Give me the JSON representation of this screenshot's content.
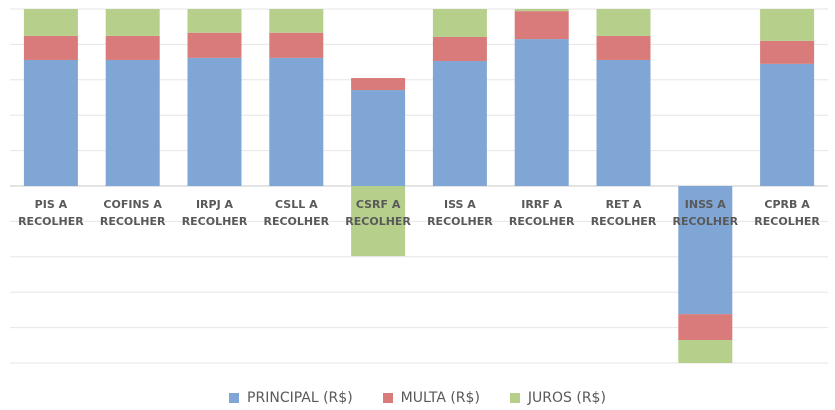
{
  "chart_data": {
    "type": "stacked_bar",
    "categories": [
      "PIS A RECOLHER",
      "COFINS A RECOLHER",
      "IRPJ A RECOLHER",
      "CSLL A RECOLHER",
      "CSRF A RECOLHER",
      "ISS A RECOLHER",
      "IRRF A RECOLHER",
      "RET A RECOLHER",
      "INSS A RECOLHER",
      "CPRB A RECOLHER"
    ],
    "series": [
      {
        "name": "PRINCIPAL (R$)",
        "color": "#7fa6d4",
        "values": [
          3.56,
          3.56,
          3.62,
          3.62,
          2.71,
          3.53,
          4.15,
          3.56,
          -3.62,
          3.45
        ]
      },
      {
        "name": "MULTA (R$)",
        "color": "#d97b7b",
        "values": [
          0.68,
          0.68,
          0.71,
          0.71,
          0.34,
          0.68,
          0.79,
          0.68,
          -0.73,
          0.65
        ]
      },
      {
        "name": "JUROS (R$)",
        "color": "#b6cf8b",
        "values": [
          0.76,
          0.76,
          0.67,
          0.67,
          -1.98,
          0.79,
          0.06,
          0.76,
          -0.65,
          0.9
        ]
      }
    ],
    "ylim": [
      -5,
      5
    ],
    "yticks": [
      -5,
      -4,
      -3,
      -2,
      -1,
      0,
      1,
      2,
      3,
      4,
      5
    ],
    "grid": true,
    "legend": "bottom"
  }
}
